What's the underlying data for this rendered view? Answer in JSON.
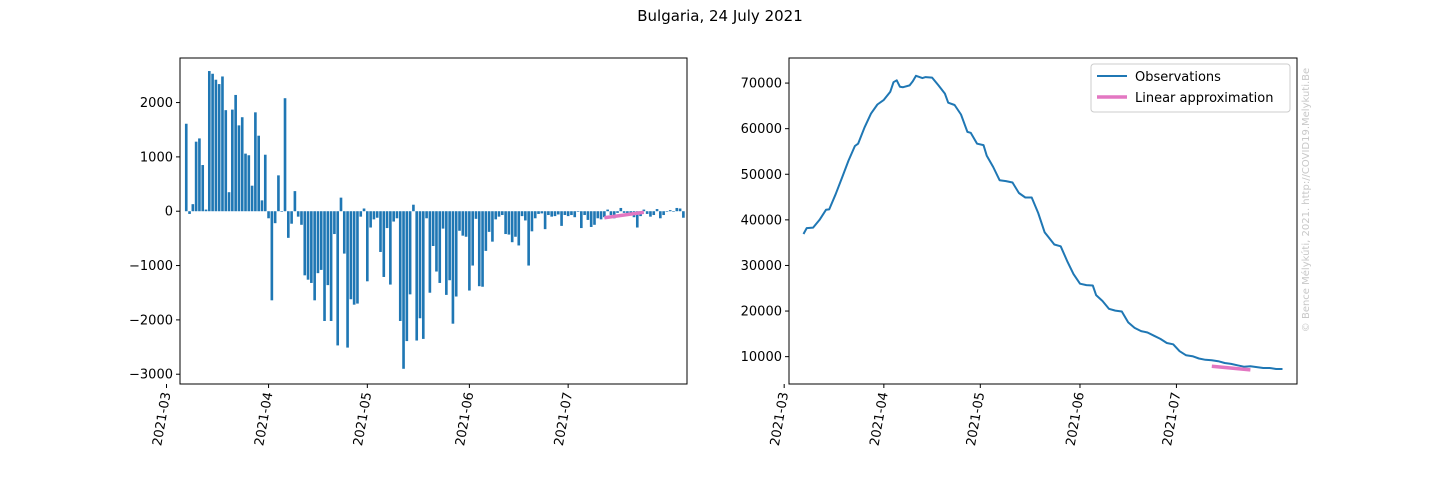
{
  "title": "Bulgaria, 24 July 2021",
  "watermark": "© Bence Mélykúti, 2021. http://COVID19.Melykuti.Be",
  "chart_data": [
    {
      "type": "bar",
      "title": "",
      "xlabel": "",
      "ylabel": "",
      "ylim": [
        -3180,
        2820
      ],
      "yticks": [
        -3000,
        -2000,
        -1000,
        0,
        1000,
        2000
      ],
      "xticks": [
        "2021-03",
        "2021-04",
        "2021-05",
        "2021-06",
        "2021-07"
      ],
      "bar_color": "#1f77b4",
      "line_color": "#e377c2",
      "start_date": "2021-03-07",
      "values": [
        1610,
        -50,
        130,
        1280,
        1340,
        850,
        30,
        2580,
        2530,
        2420,
        2340,
        2480,
        1860,
        350,
        1870,
        2140,
        1580,
        1730,
        1060,
        1030,
        470,
        1820,
        1390,
        200,
        1040,
        -130,
        -1640,
        -220,
        660,
        0,
        2080,
        -490,
        -230,
        370,
        -100,
        -250,
        -1180,
        -1260,
        -1320,
        -1640,
        -1140,
        -1080,
        -2020,
        -1360,
        -2020,
        -420,
        -2470,
        250,
        -780,
        -2510,
        -1620,
        -1720,
        -1700,
        -100,
        50,
        -1290,
        -300,
        -150,
        -120,
        -750,
        -1210,
        -310,
        -1350,
        -190,
        -130,
        -2020,
        -2900,
        -2390,
        -1530,
        120,
        -2380,
        -1970,
        -2350,
        -130,
        -1500,
        -640,
        -1110,
        -1320,
        -320,
        -1540,
        -1270,
        -2070,
        -1570,
        -360,
        -450,
        -470,
        -1460,
        -1000,
        -140,
        -1380,
        -1390,
        -730,
        -380,
        -560,
        -150,
        -100,
        -70,
        -420,
        -430,
        -570,
        -470,
        -630,
        -90,
        -170,
        -1000,
        -370,
        -130,
        -50,
        -40,
        -330,
        -70,
        -100,
        -90,
        -60,
        -270,
        -70,
        -90,
        -70,
        -110,
        -10,
        -310,
        -70,
        -160,
        -290,
        -250,
        -130,
        -150,
        -110,
        30,
        -70,
        -130,
        -30,
        60,
        -30,
        -40,
        -40,
        -110,
        -300,
        -90,
        30,
        -50,
        -100,
        -70,
        40,
        -130,
        -70,
        0,
        20,
        -10,
        60,
        50,
        -120
      ],
      "fit_line": {
        "x": [
          "2021-07-12",
          "2021-07-24"
        ],
        "y": [
          -120,
          -20
        ]
      }
    },
    {
      "type": "line",
      "title": "",
      "xlabel": "",
      "ylabel": "",
      "ylim": [
        4000,
        75500
      ],
      "yticks": [
        10000,
        20000,
        30000,
        40000,
        50000,
        60000,
        70000
      ],
      "xticks": [
        "2021-03",
        "2021-04",
        "2021-05",
        "2021-06",
        "2021-07"
      ],
      "legend": {
        "position": "top-right",
        "entries": [
          "Observations",
          "Linear approximation"
        ]
      },
      "series": [
        {
          "name": "Observations",
          "color": "#1f77b4",
          "points": [
            [
              "2021-03-07",
              36900
            ],
            [
              "2021-03-08",
              38200
            ],
            [
              "2021-03-10",
              38300
            ],
            [
              "2021-03-12",
              40000
            ],
            [
              "2021-03-14",
              42200
            ],
            [
              "2021-03-15",
              42300
            ],
            [
              "2021-03-17",
              45600
            ],
            [
              "2021-03-19",
              49300
            ],
            [
              "2021-03-21",
              53000
            ],
            [
              "2021-03-23",
              56200
            ],
            [
              "2021-03-24",
              56700
            ],
            [
              "2021-03-26",
              60300
            ],
            [
              "2021-03-28",
              63300
            ],
            [
              "2021-03-30",
              65300
            ],
            [
              "2021-04-01",
              66300
            ],
            [
              "2021-04-03",
              68100
            ],
            [
              "2021-04-04",
              70200
            ],
            [
              "2021-04-05",
              70600
            ],
            [
              "2021-04-06",
              69200
            ],
            [
              "2021-04-07",
              69100
            ],
            [
              "2021-04-09",
              69500
            ],
            [
              "2021-04-10",
              70400
            ],
            [
              "2021-04-11",
              71600
            ],
            [
              "2021-04-13",
              71100
            ],
            [
              "2021-04-14",
              71300
            ],
            [
              "2021-04-16",
              71200
            ],
            [
              "2021-04-18",
              69500
            ],
            [
              "2021-04-20",
              67700
            ],
            [
              "2021-04-21",
              65700
            ],
            [
              "2021-04-23",
              65200
            ],
            [
              "2021-04-25",
              63100
            ],
            [
              "2021-04-27",
              59300
            ],
            [
              "2021-04-28",
              59100
            ],
            [
              "2021-04-30",
              56700
            ],
            [
              "2021-05-02",
              56400
            ],
            [
              "2021-05-03",
              54100
            ],
            [
              "2021-05-05",
              51600
            ],
            [
              "2021-05-07",
              48700
            ],
            [
              "2021-05-09",
              48500
            ],
            [
              "2021-05-11",
              48200
            ],
            [
              "2021-05-13",
              45900
            ],
            [
              "2021-05-15",
              44900
            ],
            [
              "2021-05-17",
              44900
            ],
            [
              "2021-05-19",
              41500
            ],
            [
              "2021-05-21",
              37300
            ],
            [
              "2021-05-22",
              36400
            ],
            [
              "2021-05-24",
              34600
            ],
            [
              "2021-05-26",
              34200
            ],
            [
              "2021-05-28",
              31000
            ],
            [
              "2021-05-30",
              28100
            ],
            [
              "2021-06-01",
              26000
            ],
            [
              "2021-06-03",
              25700
            ],
            [
              "2021-06-05",
              25600
            ],
            [
              "2021-06-06",
              23500
            ],
            [
              "2021-06-08",
              22200
            ],
            [
              "2021-06-10",
              20500
            ],
            [
              "2021-06-12",
              20100
            ],
            [
              "2021-06-14",
              19900
            ],
            [
              "2021-06-16",
              17500
            ],
            [
              "2021-06-18",
              16300
            ],
            [
              "2021-06-20",
              15600
            ],
            [
              "2021-06-22",
              15300
            ],
            [
              "2021-06-24",
              14600
            ],
            [
              "2021-06-26",
              13900
            ],
            [
              "2021-06-28",
              13000
            ],
            [
              "2021-06-30",
              12700
            ],
            [
              "2021-07-02",
              11200
            ],
            [
              "2021-07-04",
              10300
            ],
            [
              "2021-07-06",
              10100
            ],
            [
              "2021-07-08",
              9600
            ],
            [
              "2021-07-10",
              9300
            ],
            [
              "2021-07-12",
              9200
            ],
            [
              "2021-07-14",
              9000
            ],
            [
              "2021-07-16",
              8600
            ],
            [
              "2021-07-18",
              8400
            ],
            [
              "2021-07-20",
              8100
            ],
            [
              "2021-07-22",
              7800
            ],
            [
              "2021-07-24",
              7900
            ],
            [
              "2021-07-26",
              7700
            ],
            [
              "2021-07-28",
              7500
            ],
            [
              "2021-07-30",
              7500
            ],
            [
              "2021-08-01",
              7300
            ],
            [
              "2021-08-03",
              7300
            ]
          ]
        },
        {
          "name": "Linear approximation",
          "color": "#e377c2",
          "points": [
            [
              "2021-07-12",
              7900
            ],
            [
              "2021-07-24",
              7100
            ]
          ]
        }
      ]
    }
  ]
}
